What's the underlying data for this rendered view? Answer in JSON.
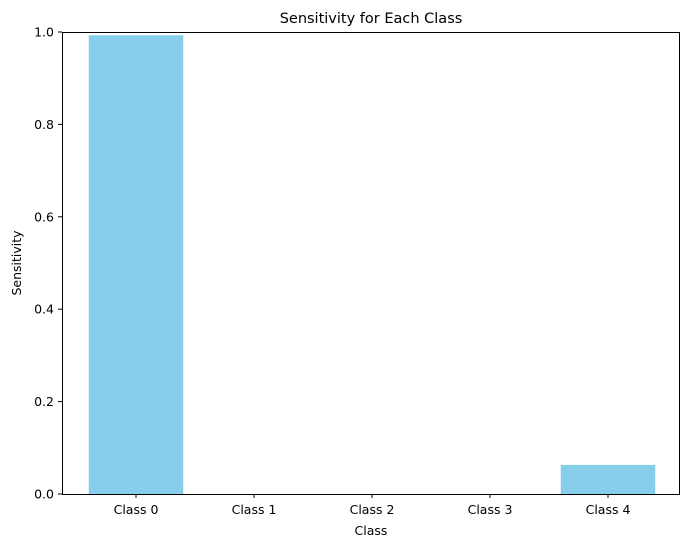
{
  "chart_data": {
    "type": "bar",
    "title": "Sensitivity for Each Class",
    "xlabel": "Class",
    "ylabel": "Sensitivity",
    "categories": [
      "Class 0",
      "Class 1",
      "Class 2",
      "Class 3",
      "Class 4"
    ],
    "values": [
      0.993,
      0.0,
      0.0,
      0.0,
      0.063
    ],
    "ylim": [
      0,
      1.0
    ],
    "yticks": [
      "0.0",
      "0.2",
      "0.4",
      "0.6",
      "0.8",
      "1.0"
    ],
    "grid": false,
    "bar_color": "#87CEEB"
  }
}
